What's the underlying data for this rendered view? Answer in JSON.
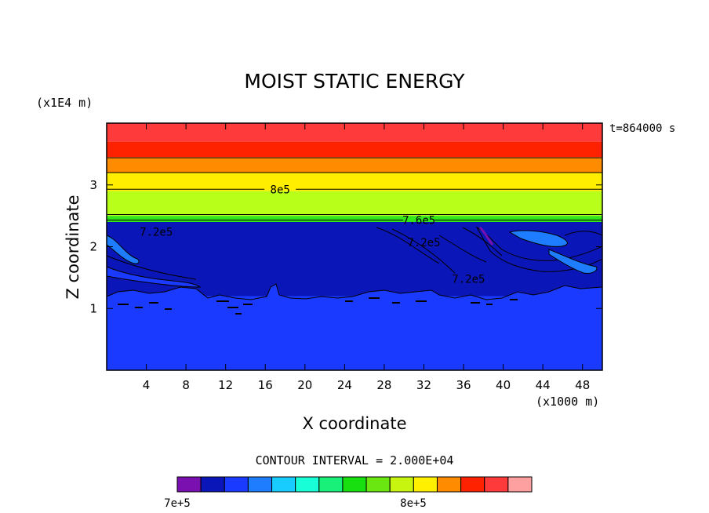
{
  "chart_data": {
    "type": "heatmap",
    "title": "MOIST STATIC ENERGY",
    "xlabel": "X coordinate",
    "ylabel": "Z coordinate",
    "x_unit": "(x1000 m)",
    "y_unit": "(x1E4 m)",
    "time_label": "t=864000 s",
    "contour_interval_text": "CONTOUR INTERVAL = 2.000E+04",
    "xlim": [
      0,
      50
    ],
    "ylim": [
      0,
      4
    ],
    "x_ticks": [
      4,
      8,
      12,
      16,
      20,
      24,
      28,
      32,
      36,
      40,
      44,
      48
    ],
    "y_ticks": [
      1,
      2,
      3
    ],
    "grid": false,
    "bands": [
      {
        "z_bottom": 0.0,
        "z_top": 1.2,
        "color": "#1a3aff"
      },
      {
        "z_bottom": 1.2,
        "z_top": 2.4,
        "color": "#0a16b8"
      },
      {
        "z_bottom": 2.4,
        "z_top": 2.5,
        "color": "#33e61a"
      },
      {
        "z_bottom": 2.5,
        "z_top": 2.9,
        "color": "#b8ff1a"
      },
      {
        "z_bottom": 2.9,
        "z_top": 3.2,
        "color": "#ffee00"
      },
      {
        "z_bottom": 3.2,
        "z_top": 3.45,
        "color": "#ff8c00"
      },
      {
        "z_bottom": 3.45,
        "z_top": 3.7,
        "color": "#ff2200"
      },
      {
        "z_bottom": 3.7,
        "z_top": 4.0,
        "color": "#ff3a3a"
      }
    ],
    "contour_levels_drawn": [
      {
        "z": 3.44
      },
      {
        "z": 3.2
      },
      {
        "z": 2.93,
        "label": "8e5",
        "label_x": 17.5
      },
      {
        "z": 2.52
      },
      {
        "z": 2.43,
        "label": "7.6e5",
        "label_x": 31.5
      }
    ],
    "contour_labels": [
      {
        "text": "7.2e5",
        "x": 5,
        "z": 2.24
      },
      {
        "text": "7.2e5",
        "x": 32,
        "z": 2.07
      },
      {
        "text": "7.2e5",
        "x": 36.5,
        "z": 1.48
      }
    ],
    "colorbar": {
      "colors": [
        "#7a10b0",
        "#0a16b8",
        "#1a3aff",
        "#1e7cff",
        "#18ccff",
        "#18ffd8",
        "#18f07a",
        "#18e010",
        "#6ae610",
        "#c8f510",
        "#fff000",
        "#ff8c00",
        "#ff2200",
        "#ff3a3a",
        "#ffa0a0"
      ],
      "min_label": "7e+5",
      "mid_label": "8e+5"
    }
  }
}
